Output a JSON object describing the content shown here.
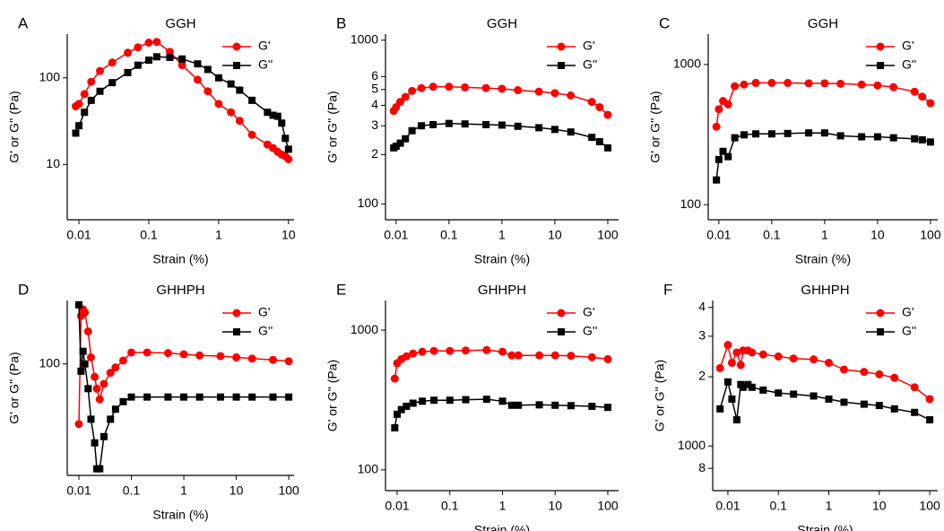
{
  "chart_data": [
    {
      "type": "line",
      "panel_label": "A",
      "title": "GGH",
      "x_label": "Strain (%)",
      "y_label": "G' or G'' (Pa)",
      "log_x": true,
      "log_y": true,
      "legend": "upper right",
      "xlim": [
        0.0068,
        12
      ],
      "xticks": [
        0.01,
        0.1,
        1,
        10
      ],
      "ylim": [
        2.3,
        320
      ],
      "yticks": [
        10,
        100
      ],
      "x": [
        0.009,
        0.01,
        0.012,
        0.015,
        0.02,
        0.03,
        0.05,
        0.07,
        0.1,
        0.13,
        0.2,
        0.3,
        0.5,
        0.7,
        1,
        1.5,
        2,
        3,
        5,
        6,
        7,
        8,
        9,
        10
      ],
      "series": [
        {
          "name": "G'",
          "color": "#ff0000",
          "marker": "circle",
          "values": [
            47,
            50,
            65,
            90,
            120,
            150,
            195,
            225,
            255,
            260,
            200,
            140,
            95,
            70,
            50,
            40,
            32,
            22,
            17,
            15.5,
            14,
            13,
            12.5,
            11.5
          ]
        },
        {
          "name": "G''",
          "color": "#000000",
          "marker": "square",
          "values": [
            23,
            28,
            40,
            55,
            70,
            88,
            115,
            140,
            160,
            175,
            172,
            165,
            145,
            125,
            100,
            85,
            72,
            55,
            40,
            37,
            36,
            30,
            20,
            15
          ]
        }
      ]
    },
    {
      "type": "line",
      "panel_label": "B",
      "title": "GGH",
      "x_label": "Strain (%)",
      "y_label": "G' or G'' (Pa)",
      "log_x": true,
      "log_y": true,
      "legend": "upper right",
      "xlim": [
        0.0063,
        160
      ],
      "xticks": [
        0.01,
        0.1,
        1,
        10,
        100
      ],
      "ylim": [
        80,
        1090
      ],
      "yticks": [
        100,
        {
          "value": 200,
          "label": "2"
        },
        {
          "value": 300,
          "label": "3"
        },
        {
          "value": 400,
          "label": "4"
        },
        {
          "value": 500,
          "label": "5"
        },
        {
          "value": 600,
          "label": "6"
        },
        1000
      ],
      "x": [
        0.009,
        0.01,
        0.012,
        0.015,
        0.02,
        0.03,
        0.05,
        0.1,
        0.2,
        0.5,
        1,
        2,
        5,
        10,
        20,
        50,
        70,
        100
      ],
      "series": [
        {
          "name": "G'",
          "color": "#ff0000",
          "marker": "circle",
          "values": [
            370,
            390,
            420,
            450,
            490,
            510,
            520,
            520,
            515,
            510,
            505,
            495,
            485,
            475,
            460,
            420,
            390,
            350
          ]
        },
        {
          "name": "G''",
          "color": "#000000",
          "marker": "square",
          "values": [
            220,
            225,
            235,
            250,
            280,
            300,
            305,
            310,
            308,
            305,
            303,
            298,
            292,
            285,
            275,
            255,
            240,
            220
          ]
        }
      ]
    },
    {
      "type": "line",
      "panel_label": "C",
      "title": "GGH",
      "x_label": "Strain (%)",
      "y_label": "G' or G'' (Pa)",
      "log_x": true,
      "log_y": true,
      "legend": "upper right",
      "xlim": [
        0.0063,
        137
      ],
      "xticks": [
        0.01,
        0.1,
        1,
        10,
        100
      ],
      "ylim": [
        78,
        1650
      ],
      "yticks": [
        100,
        1000
      ],
      "x": [
        0.009,
        0.01,
        0.012,
        0.015,
        0.02,
        0.03,
        0.05,
        0.1,
        0.2,
        0.5,
        1,
        2,
        5,
        10,
        20,
        50,
        70,
        100
      ],
      "series": [
        {
          "name": "G'",
          "color": "#ff0000",
          "marker": "circle",
          "values": [
            360,
            480,
            550,
            520,
            700,
            720,
            740,
            740,
            740,
            735,
            735,
            730,
            720,
            710,
            690,
            640,
            590,
            530
          ]
        },
        {
          "name": "G''",
          "color": "#000000",
          "marker": "square",
          "values": [
            150,
            210,
            240,
            220,
            300,
            315,
            320,
            320,
            322,
            325,
            325,
            310,
            305,
            305,
            300,
            295,
            290,
            280
          ]
        }
      ]
    },
    {
      "type": "line",
      "panel_label": "D",
      "title": "GHHPH",
      "x_label": "Strain (%)",
      "y_label": "G' or G'' (Pa)",
      "log_x": true,
      "log_y": true,
      "legend": "upper right",
      "xlim": [
        0.006,
        126
      ],
      "xticks": [
        0.01,
        0.1,
        1,
        10,
        100
      ],
      "ylim": [
        20,
        250
      ],
      "yticks": [
        100
      ],
      "x": [
        0.01,
        0.011,
        0.012,
        0.013,
        0.015,
        0.017,
        0.02,
        0.022,
        0.025,
        0.03,
        0.04,
        0.05,
        0.07,
        0.1,
        0.2,
        0.5,
        1,
        2,
        5,
        10,
        20,
        50,
        100
      ],
      "series": [
        {
          "name": "G'",
          "color": "#ff0000",
          "marker": "circle",
          "values": [
            42,
            200,
            220,
            210,
            160,
            110,
            83,
            70,
            60,
            75,
            88,
            95,
            105,
            118,
            118,
            117,
            115,
            113,
            112,
            110,
            108,
            106,
            104
          ]
        },
        {
          "name": "G''",
          "color": "#000000",
          "marker": "square",
          "values": [
            235,
            90,
            120,
            100,
            70,
            45,
            32,
            22,
            22,
            35,
            45,
            52,
            58,
            62,
            62,
            62,
            62,
            62,
            62,
            62,
            62,
            62,
            62
          ]
        }
      ]
    },
    {
      "type": "line",
      "panel_label": "E",
      "title": "GHHPH",
      "x_label": "Strain (%)",
      "y_label": "G' or G'' (Pa)",
      "log_x": true,
      "log_y": true,
      "legend": "upper right",
      "xlim": [
        0.006,
        160
      ],
      "xticks": [
        0.01,
        0.1,
        1,
        10,
        100
      ],
      "ylim": [
        71,
        1630
      ],
      "yticks": [
        100,
        1000
      ],
      "x": [
        0.009,
        0.01,
        0.012,
        0.015,
        0.02,
        0.03,
        0.05,
        0.1,
        0.2,
        0.5,
        1,
        1.5,
        2,
        5,
        10,
        20,
        50,
        100
      ],
      "series": [
        {
          "name": "G'",
          "color": "#ff0000",
          "marker": "circle",
          "values": [
            450,
            580,
            620,
            650,
            680,
            700,
            710,
            710,
            715,
            720,
            700,
            660,
            660,
            660,
            660,
            655,
            640,
            620
          ]
        },
        {
          "name": "G''",
          "color": "#000000",
          "marker": "square",
          "values": [
            200,
            250,
            270,
            285,
            300,
            310,
            315,
            315,
            318,
            320,
            310,
            290,
            290,
            292,
            290,
            288,
            285,
            280
          ]
        }
      ]
    },
    {
      "type": "line",
      "panel_label": "F",
      "title": "GHHPH",
      "x_label": "Strain (%)",
      "y_label": "G' or G'' (Pa)",
      "log_x": true,
      "log_y": true,
      "legend": "upper right",
      "xlim": [
        0.005,
        144
      ],
      "xticks": [
        0.01,
        0.1,
        1,
        10,
        100
      ],
      "ylim": [
        640,
        4290
      ],
      "yticks": [
        {
          "value": 800,
          "label": "8"
        },
        1000,
        {
          "value": 2000,
          "label": "2"
        },
        {
          "value": 3000,
          "label": "3"
        },
        {
          "value": 4000,
          "label": "4"
        }
      ],
      "x": [
        0.007,
        0.01,
        0.012,
        0.015,
        0.018,
        0.02,
        0.025,
        0.03,
        0.05,
        0.1,
        0.2,
        0.5,
        1,
        2,
        5,
        10,
        20,
        50,
        100
      ],
      "series": [
        {
          "name": "G'",
          "color": "#ff0000",
          "marker": "circle",
          "values": [
            2180,
            2750,
            2300,
            2550,
            2250,
            2600,
            2600,
            2550,
            2500,
            2450,
            2400,
            2380,
            2300,
            2150,
            2100,
            2050,
            1980,
            1800,
            1600
          ]
        },
        {
          "name": "G''",
          "color": "#000000",
          "marker": "square",
          "values": [
            1450,
            1900,
            1600,
            1300,
            1850,
            1800,
            1850,
            1800,
            1750,
            1700,
            1680,
            1650,
            1600,
            1550,
            1520,
            1500,
            1450,
            1400,
            1300
          ]
        }
      ]
    }
  ]
}
